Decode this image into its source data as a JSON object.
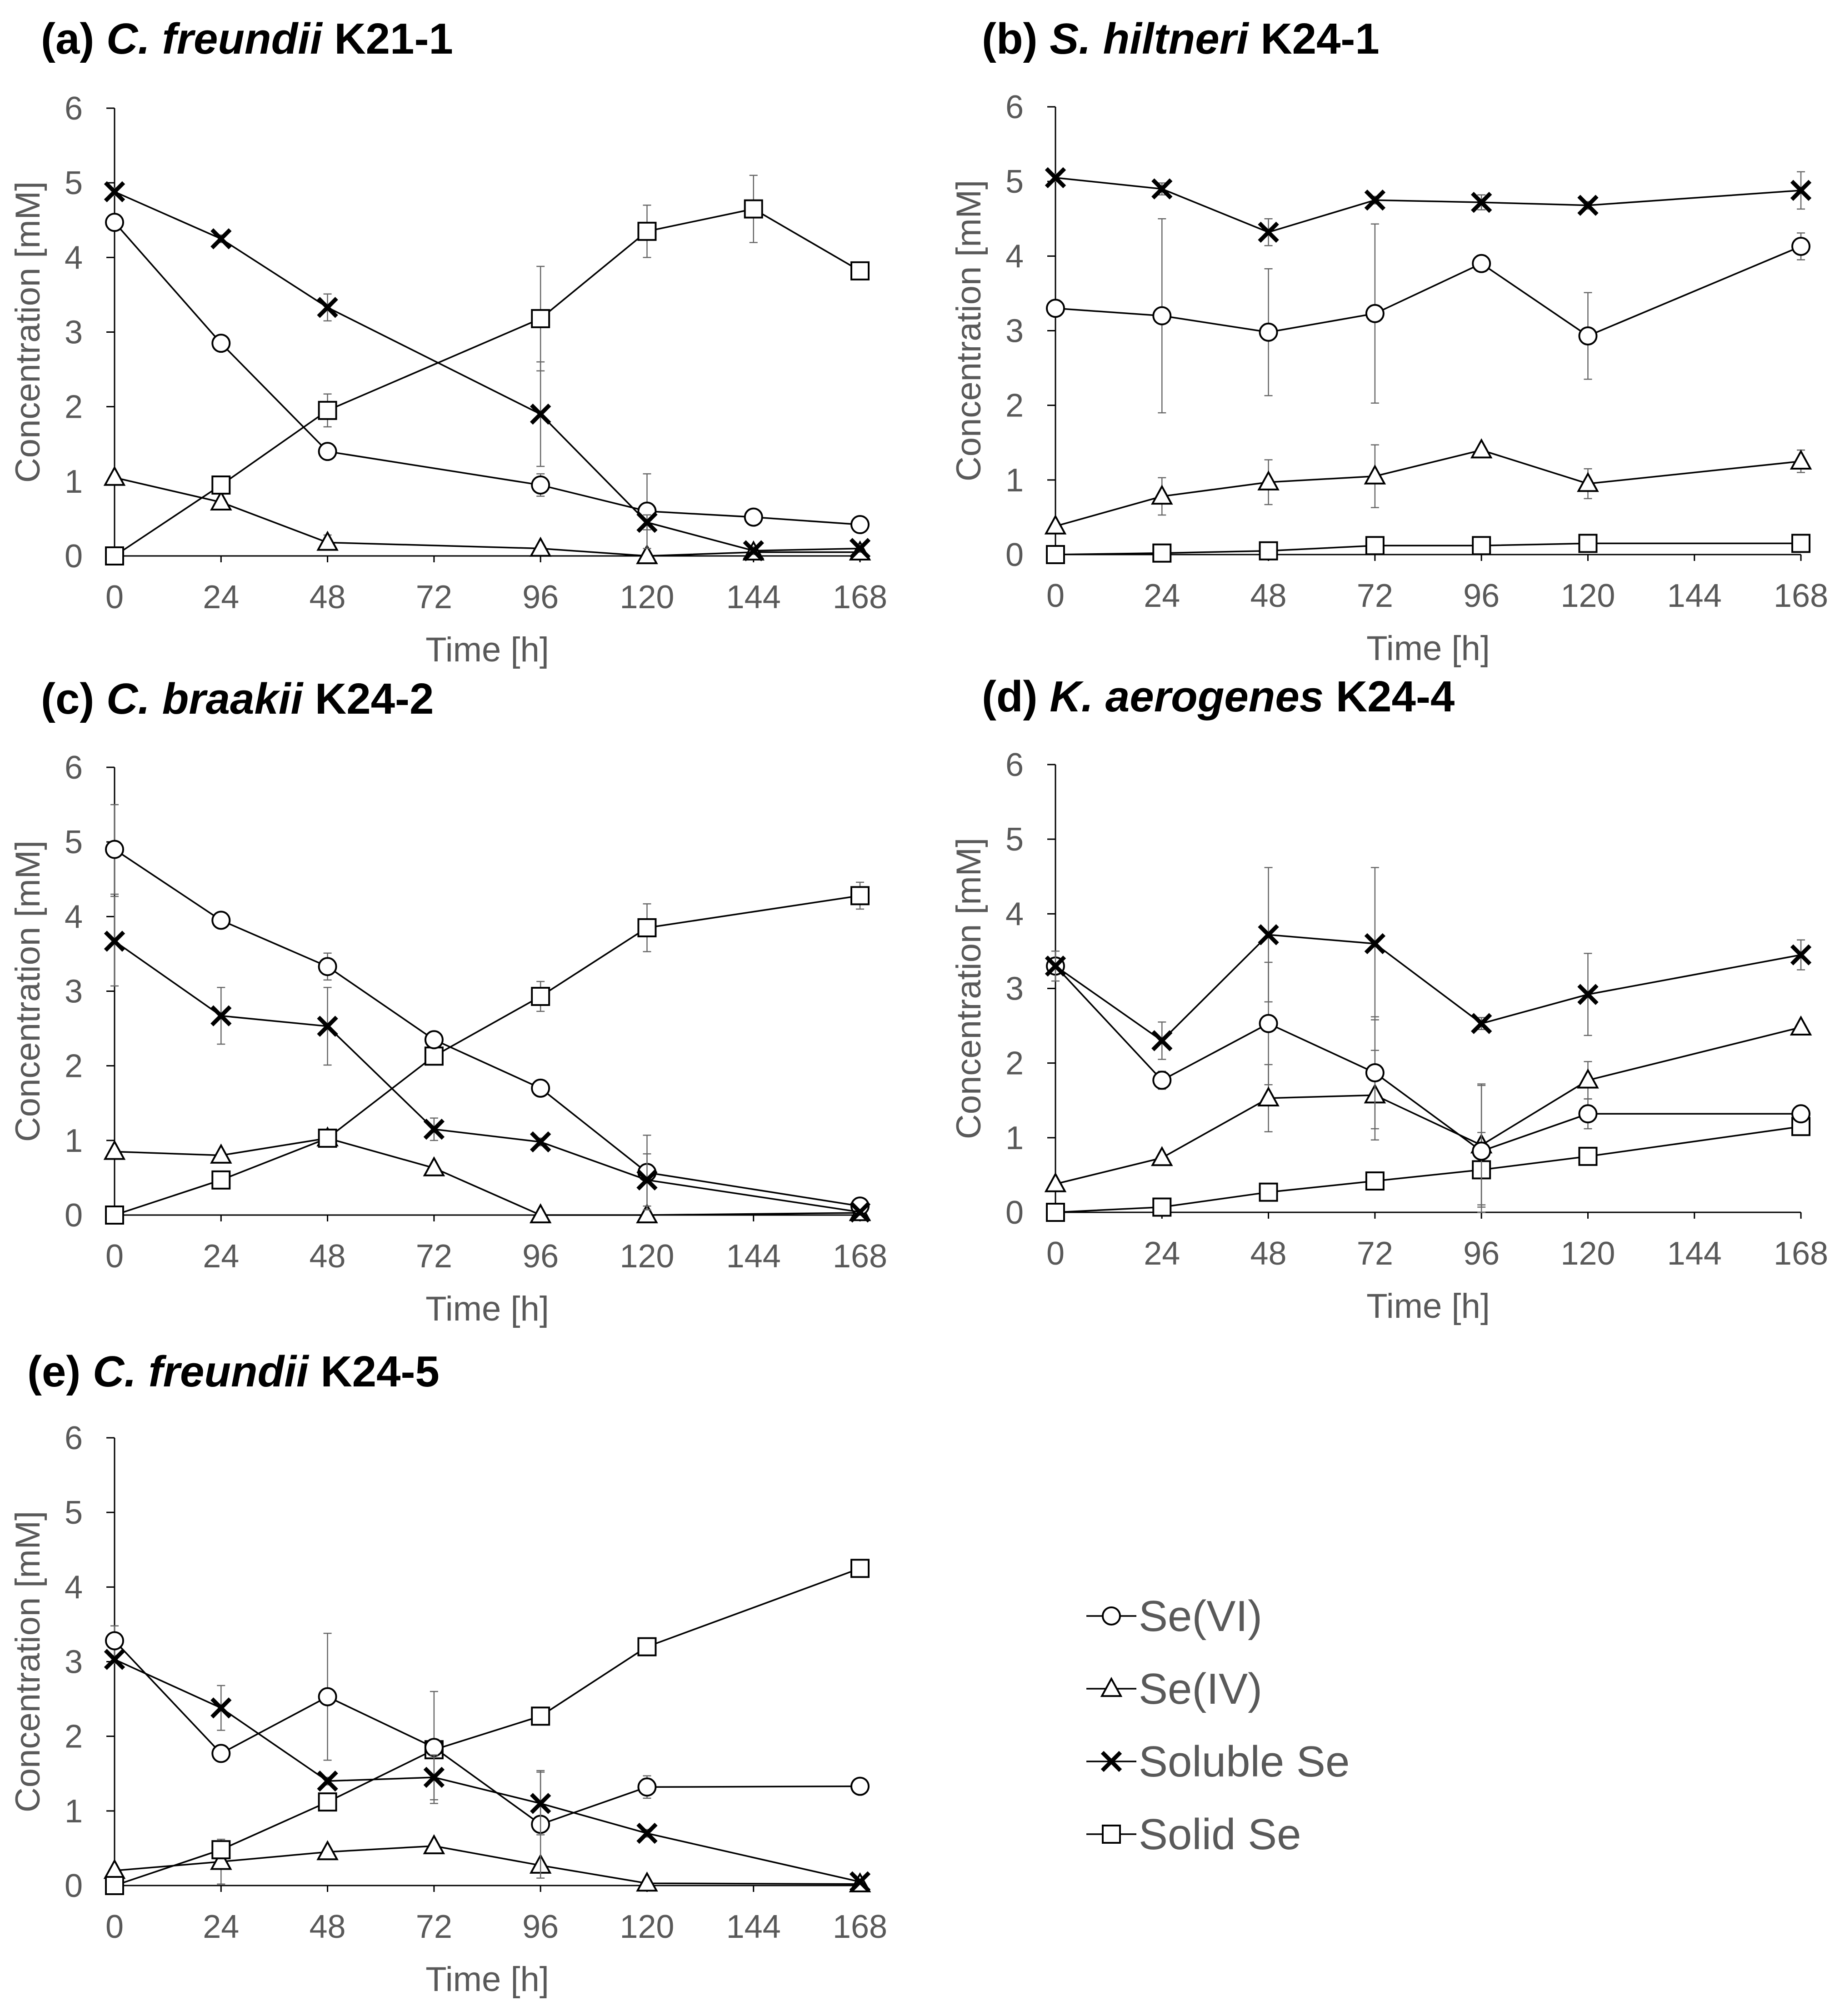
{
  "legend": [
    {
      "series": "Se(VI)",
      "marker": "circle"
    },
    {
      "series": "Se(IV)",
      "marker": "triangle"
    },
    {
      "series": "Soluble Se",
      "marker": "x"
    },
    {
      "series": "Solid Se",
      "marker": "square"
    }
  ],
  "chart_data": [
    {
      "type": "line",
      "panel": "(a)",
      "species": "C. freundii",
      "strain": "K21-1",
      "xlabel": "Time [h]",
      "ylabel": "Concentration [mM]",
      "xlim": [
        0,
        168
      ],
      "ylim": [
        0,
        6
      ],
      "xticks": [
        0,
        24,
        48,
        72,
        96,
        120,
        144,
        168
      ],
      "yticks": [
        0,
        1,
        2,
        3,
        4,
        5,
        6
      ],
      "series": [
        {
          "name": "Se(VI)",
          "marker": "circle",
          "x": [
            0,
            24,
            48,
            96,
            120,
            144,
            168
          ],
          "y": [
            4.47,
            2.85,
            1.4,
            0.95,
            0.6,
            0.52,
            0.42
          ],
          "err": [
            0.1,
            0.05,
            0.05,
            0.15,
            0.5,
            0.05,
            0.03
          ]
        },
        {
          "name": "Se(IV)",
          "marker": "triangle",
          "x": [
            0,
            24,
            48,
            96,
            120,
            144,
            168
          ],
          "y": [
            1.05,
            0.72,
            0.18,
            0.1,
            0.0,
            0.05,
            0.05
          ],
          "err": [
            0.05,
            0.05,
            0.1,
            0.05,
            0.02,
            0.05,
            0.05
          ]
        },
        {
          "name": "Soluble Se",
          "marker": "x",
          "x": [
            0,
            24,
            48,
            96,
            120,
            144,
            168
          ],
          "y": [
            4.88,
            4.25,
            3.33,
            1.9,
            0.45,
            0.07,
            0.1
          ],
          "err": [
            0.05,
            0.05,
            0.18,
            0.7,
            0.1,
            0.05,
            0.05
          ]
        },
        {
          "name": "Solid Se",
          "marker": "square",
          "x": [
            0,
            24,
            48,
            96,
            120,
            144,
            168
          ],
          "y": [
            0.0,
            0.95,
            1.95,
            3.18,
            4.35,
            4.65,
            3.82
          ],
          "err": [
            0.0,
            0.05,
            0.22,
            0.7,
            0.35,
            0.45,
            0.05
          ]
        }
      ]
    },
    {
      "type": "line",
      "panel": "(b)",
      "species": "S. hiltneri",
      "strain": "K24-1",
      "xlabel": "Time [h]",
      "ylabel": "Concentration [mM]",
      "xlim": [
        0,
        168
      ],
      "ylim": [
        0,
        6
      ],
      "xticks": [
        0,
        24,
        48,
        72,
        96,
        120,
        144,
        168
      ],
      "yticks": [
        0,
        1,
        2,
        3,
        4,
        5,
        6
      ],
      "series": [
        {
          "name": "Se(VI)",
          "marker": "circle",
          "x": [
            0,
            24,
            48,
            72,
            96,
            120,
            168
          ],
          "y": [
            3.3,
            3.2,
            2.98,
            3.23,
            3.9,
            2.93,
            4.13
          ],
          "err": [
            0.1,
            1.3,
            0.85,
            1.2,
            0.05,
            0.58,
            0.18
          ]
        },
        {
          "name": "Se(IV)",
          "marker": "triangle",
          "x": [
            0,
            24,
            48,
            72,
            96,
            120,
            168
          ],
          "y": [
            0.38,
            0.78,
            0.97,
            1.05,
            1.4,
            0.95,
            1.25
          ],
          "err": [
            0.05,
            0.25,
            0.3,
            0.42,
            0.05,
            0.2,
            0.15
          ]
        },
        {
          "name": "Soluble Se",
          "marker": "x",
          "x": [
            0,
            24,
            48,
            72,
            96,
            120,
            168
          ],
          "y": [
            5.05,
            4.9,
            4.32,
            4.75,
            4.72,
            4.68,
            4.88
          ],
          "err": [
            0.05,
            0.08,
            0.18,
            0.05,
            0.1,
            0.05,
            0.25
          ]
        },
        {
          "name": "Solid Se",
          "marker": "square",
          "x": [
            0,
            24,
            48,
            72,
            96,
            120,
            168
          ],
          "y": [
            0.0,
            0.02,
            0.05,
            0.12,
            0.12,
            0.15,
            0.15
          ],
          "err": [
            0.0,
            0.02,
            0.03,
            0.04,
            0.03,
            0.05,
            0.05
          ]
        }
      ]
    },
    {
      "type": "line",
      "panel": "(c)",
      "species": "C. braakii",
      "strain": "K24-2",
      "xlabel": "Time [h]",
      "ylabel": "Concentration [mM]",
      "xlim": [
        0,
        168
      ],
      "ylim": [
        0,
        6
      ],
      "xticks": [
        0,
        24,
        48,
        72,
        96,
        120,
        144,
        168
      ],
      "yticks": [
        0,
        1,
        2,
        3,
        4,
        5,
        6
      ],
      "series": [
        {
          "name": "Se(VI)",
          "marker": "circle",
          "x": [
            0,
            24,
            48,
            72,
            96,
            120,
            168
          ],
          "y": [
            4.9,
            3.95,
            3.33,
            2.35,
            1.7,
            0.57,
            0.12
          ],
          "err": [
            0.6,
            0.05,
            0.18,
            0.05,
            0.05,
            0.5,
            0.03
          ]
        },
        {
          "name": "Se(IV)",
          "marker": "triangle",
          "x": [
            0,
            24,
            48,
            72,
            96,
            120,
            168
          ],
          "y": [
            0.85,
            0.8,
            1.03,
            0.63,
            0.0,
            0.0,
            0.03
          ],
          "err": [
            0.05,
            0.05,
            0.05,
            0.05,
            0.02,
            0.02,
            0.02
          ]
        },
        {
          "name": "Soluble Se",
          "marker": "x",
          "x": [
            0,
            24,
            48,
            72,
            96,
            120,
            168
          ],
          "y": [
            3.67,
            2.67,
            2.53,
            1.15,
            0.98,
            0.47,
            0.04
          ],
          "err": [
            0.6,
            0.38,
            0.52,
            0.15,
            0.05,
            0.35,
            0.03
          ]
        },
        {
          "name": "Solid Se",
          "marker": "square",
          "x": [
            0,
            24,
            48,
            72,
            96,
            120,
            168
          ],
          "y": [
            0.0,
            0.47,
            1.03,
            2.13,
            2.93,
            3.85,
            4.28
          ],
          "err": [
            0.0,
            0.05,
            0.1,
            0.05,
            0.2,
            0.32,
            0.18
          ]
        }
      ]
    },
    {
      "type": "line",
      "panel": "(d)",
      "species": "K. aerogenes",
      "strain": "K24-4",
      "xlabel": "Time [h]",
      "ylabel": "Concentration [mM]",
      "xlim": [
        0,
        168
      ],
      "ylim": [
        0,
        6
      ],
      "xticks": [
        0,
        24,
        48,
        72,
        96,
        120,
        144,
        168
      ],
      "yticks": [
        0,
        1,
        2,
        3,
        4,
        5,
        6
      ],
      "series": [
        {
          "name": "Se(VI)",
          "marker": "circle",
          "x": [
            0,
            24,
            48,
            72,
            96,
            120,
            168
          ],
          "y": [
            3.3,
            1.77,
            2.53,
            1.87,
            0.82,
            1.32,
            1.32
          ],
          "err": [
            0.1,
            0.12,
            0.82,
            0.75,
            0.9,
            0.2,
            0.05
          ]
        },
        {
          "name": "Se(IV)",
          "marker": "triangle",
          "x": [
            0,
            24,
            48,
            72,
            96,
            120,
            168
          ],
          "y": [
            0.38,
            0.73,
            1.53,
            1.57,
            0.9,
            1.77,
            2.48
          ],
          "err": [
            0.05,
            0.05,
            0.45,
            0.6,
            0.8,
            0.25,
            0.05
          ]
        },
        {
          "name": "Soluble Se",
          "marker": "x",
          "x": [
            0,
            24,
            48,
            72,
            96,
            120,
            168
          ],
          "y": [
            3.3,
            2.3,
            3.72,
            3.6,
            2.53,
            2.92,
            3.45
          ],
          "err": [
            0.2,
            0.25,
            0.9,
            1.02,
            0.08,
            0.55,
            0.2
          ]
        },
        {
          "name": "Solid Se",
          "marker": "square",
          "x": [
            0,
            24,
            48,
            72,
            96,
            120,
            168
          ],
          "y": [
            0.0,
            0.07,
            0.27,
            0.42,
            0.57,
            0.75,
            1.15
          ],
          "err": [
            0.0,
            0.03,
            0.05,
            0.05,
            0.5,
            0.05,
            0.05
          ]
        }
      ]
    },
    {
      "type": "line",
      "panel": "(e)",
      "species": "C. freundii",
      "strain": "K24-5",
      "xlabel": "Time [h]",
      "ylabel": "Concentration [mM]",
      "xlim": [
        0,
        168
      ],
      "ylim": [
        0,
        6
      ],
      "xticks": [
        0,
        24,
        48,
        72,
        96,
        120,
        144,
        168
      ],
      "yticks": [
        0,
        1,
        2,
        3,
        4,
        5,
        6
      ],
      "series": [
        {
          "name": "Se(VI)",
          "marker": "circle",
          "x": [
            0,
            24,
            48,
            72,
            96,
            120,
            168
          ],
          "y": [
            3.28,
            1.77,
            2.53,
            1.85,
            0.82,
            1.32,
            1.33
          ],
          "err": [
            0.2,
            0.08,
            0.85,
            0.75,
            0.72,
            0.15,
            0.05
          ]
        },
        {
          "name": "Se(IV)",
          "marker": "triangle",
          "x": [
            0,
            24,
            48,
            72,
            96,
            120,
            168
          ],
          "y": [
            0.2,
            0.32,
            0.45,
            0.53,
            0.27,
            0.03,
            0.02
          ],
          "err": [
            0.05,
            0.3,
            0.05,
            0.05,
            0.05,
            0.02,
            0.02
          ]
        },
        {
          "name": "Soluble Se",
          "marker": "x",
          "x": [
            0,
            24,
            48,
            72,
            96,
            120,
            168
          ],
          "y": [
            3.03,
            2.38,
            1.4,
            1.45,
            1.1,
            0.7,
            0.05
          ],
          "err": [
            0.05,
            0.3,
            0.05,
            0.3,
            0.42,
            0.05,
            0.03
          ]
        },
        {
          "name": "Solid Se",
          "marker": "square",
          "x": [
            0,
            24,
            48,
            72,
            96,
            120,
            168
          ],
          "y": [
            0.0,
            0.48,
            1.12,
            1.82,
            2.27,
            3.2,
            4.25
          ],
          "err": [
            0.0,
            0.05,
            0.05,
            0.05,
            0.05,
            0.05,
            0.05
          ]
        }
      ]
    }
  ]
}
